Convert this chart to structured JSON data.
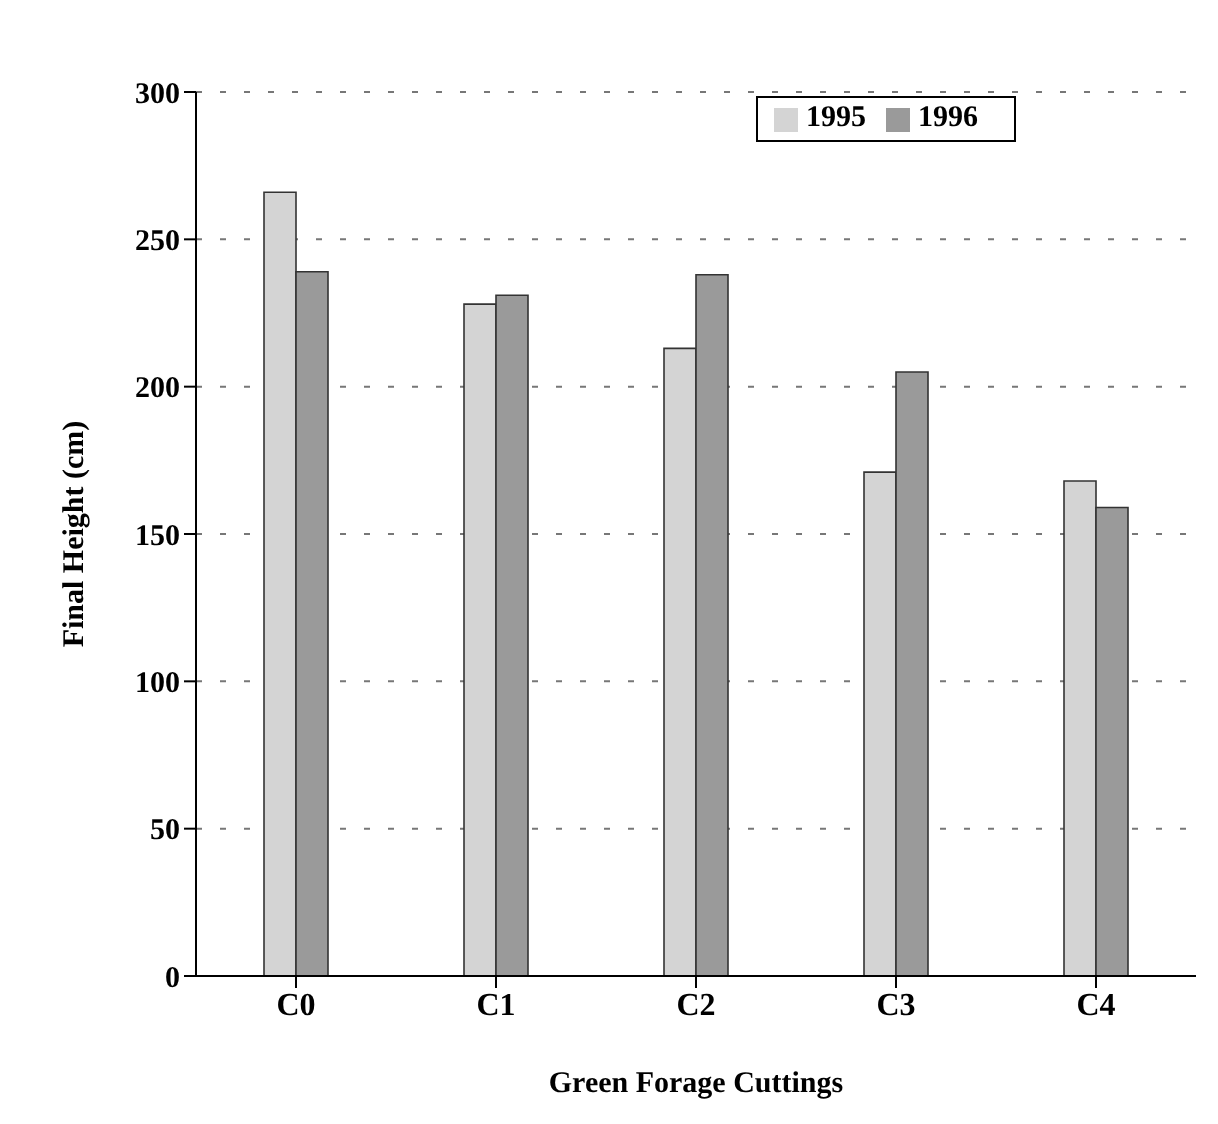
{
  "chart_data": {
    "type": "bar",
    "xlabel": "Green Forage Cuttings",
    "ylabel": "Final Height (cm)",
    "categories": [
      "C0",
      "C1",
      "C2",
      "C3",
      "C4"
    ],
    "series": [
      {
        "name": "1995",
        "color": "#d4d4d4",
        "values": [
          266,
          228,
          213,
          171,
          168
        ]
      },
      {
        "name": "1996",
        "color": "#9a9a9a",
        "values": [
          239,
          231,
          238,
          205,
          159
        ]
      }
    ],
    "ylim": [
      0,
      300
    ],
    "yticks": [
      0,
      50,
      100,
      150,
      200,
      250,
      300
    ],
    "grid": "y",
    "legend": "top right"
  }
}
